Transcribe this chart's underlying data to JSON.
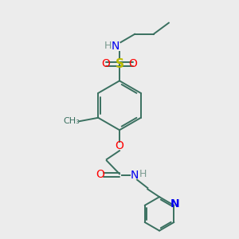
{
  "bg_color": "#ececec",
  "bond_color": "#3a7060",
  "bond_width": 1.4,
  "N_color": "#0000ee",
  "O_color": "#ff0000",
  "S_color": "#bbbb00",
  "H_color": "#7a9a90",
  "font_size": 9,
  "figsize": [
    3.0,
    3.0
  ],
  "dpi": 100,
  "xlim": [
    0,
    10
  ],
  "ylim": [
    0,
    10
  ]
}
